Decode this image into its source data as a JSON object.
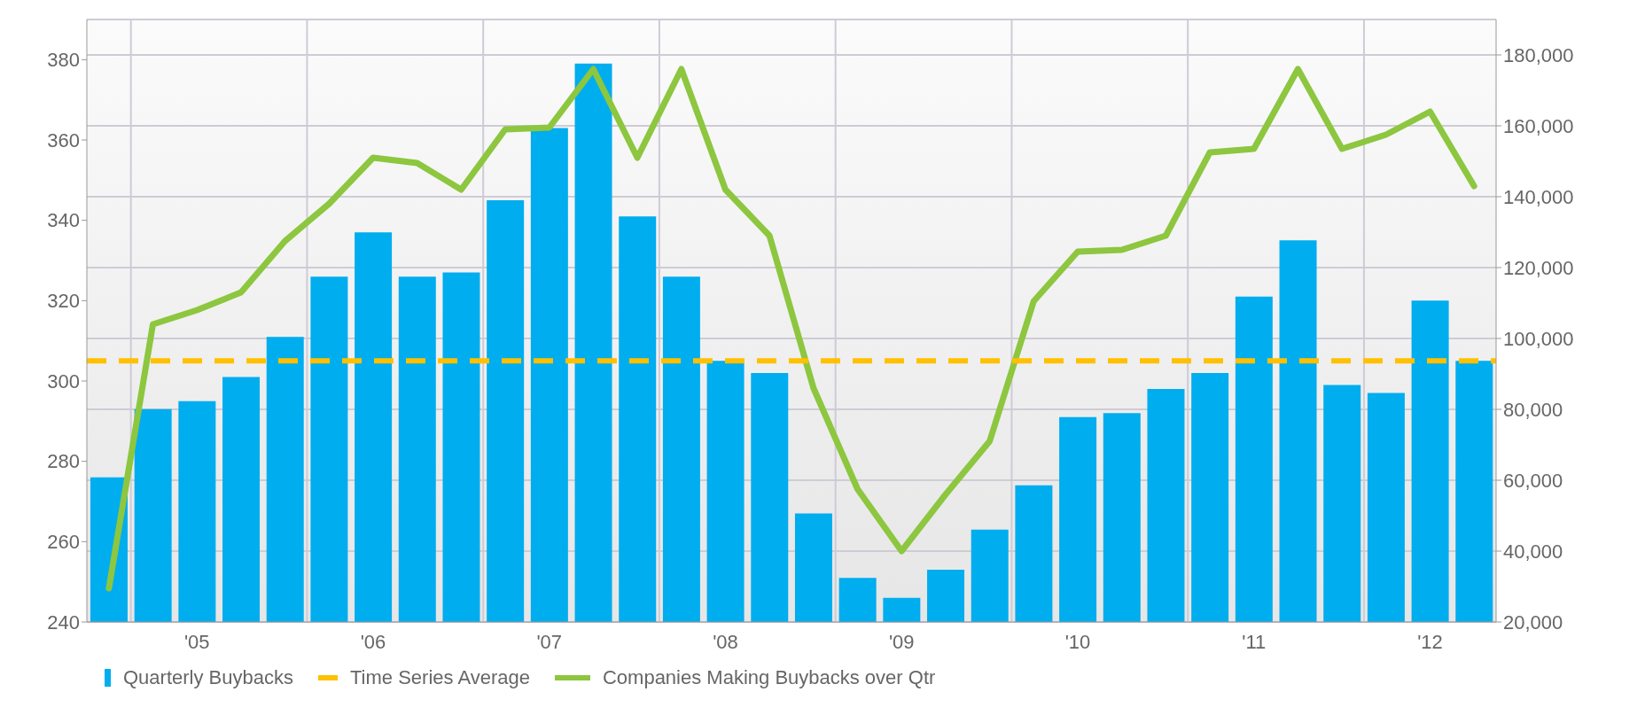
{
  "chart_data": {
    "type": "bar",
    "categories": [
      null,
      null,
      "'05",
      null,
      null,
      null,
      "'06",
      null,
      null,
      null,
      "'07",
      null,
      null,
      null,
      "'08",
      null,
      null,
      null,
      "'09",
      null,
      null,
      null,
      "'10",
      null,
      null,
      null,
      "'11",
      null,
      null,
      null,
      "'12",
      null
    ],
    "series": [
      {
        "name": "Quarterly Buybacks",
        "color": "#00adef",
        "values": [
          276,
          293,
          295,
          301,
          311,
          326,
          337,
          326,
          327,
          345,
          363,
          379,
          341,
          326,
          305,
          302,
          267,
          251,
          246,
          253,
          263,
          274,
          291,
          292,
          298,
          302,
          321,
          335,
          299,
          297,
          320,
          305
        ]
      },
      {
        "name": "Companies Making Buybacks over Qtr",
        "type": "line",
        "axis": "y2",
        "color": "#8dc63f",
        "values": [
          29500,
          104000,
          108000,
          113000,
          127500,
          138000,
          151000,
          149500,
          142000,
          159000,
          159500,
          176000,
          151000,
          176000,
          142000,
          129000,
          86000,
          57500,
          40000,
          56000,
          71000,
          110500,
          124500,
          125000,
          129000,
          152500,
          153500,
          176000,
          153500,
          157500,
          164000,
          143000
        ]
      }
    ],
    "ref_lines": [
      {
        "axis": "y",
        "value": 305,
        "label": "Time Series Average",
        "color": "#ffc000",
        "line_style": "dashed"
      }
    ],
    "ylim": [
      240,
      390
    ],
    "yticks": [
      240,
      260,
      280,
      300,
      320,
      340,
      360,
      380
    ],
    "y2lim": [
      20000,
      190000
    ],
    "y2ticks": [
      {
        "value": 20000,
        "label": "20,000"
      },
      {
        "value": 40000,
        "label": "40,000"
      },
      {
        "value": 60000,
        "label": "60,000"
      },
      {
        "value": 80000,
        "label": "80,000"
      },
      {
        "value": 100000,
        "label": "100,000"
      },
      {
        "value": 120000,
        "label": "120,000"
      },
      {
        "value": 140000,
        "label": "140,000"
      },
      {
        "value": 160000,
        "label": "160,000"
      },
      {
        "value": 180000,
        "label": "180,000"
      }
    ],
    "grid": true,
    "legend": "bottom",
    "marker": "none",
    "line_style": "solid"
  }
}
